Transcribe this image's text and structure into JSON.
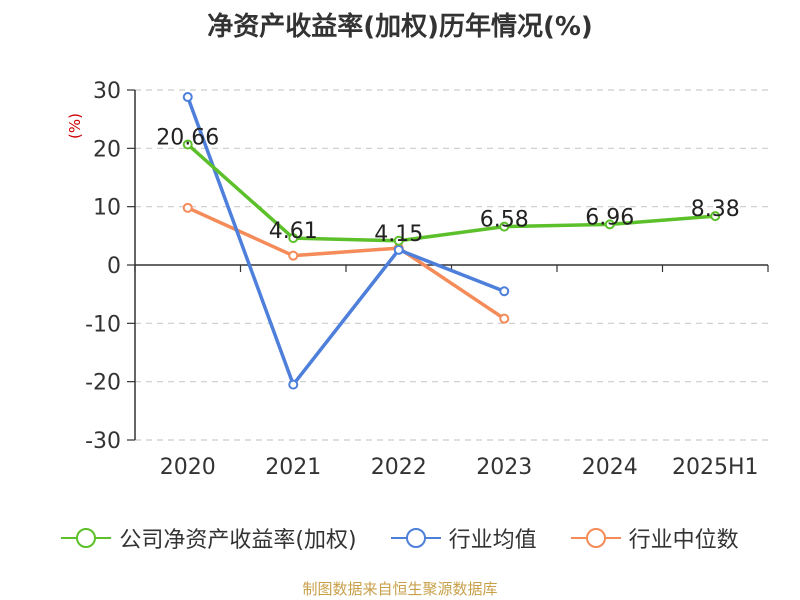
{
  "chart_data": {
    "type": "line",
    "title": "净资产收益率(加权)历年情况(%)",
    "ylabel": "(%)",
    "categories": [
      "2020",
      "2021",
      "2022",
      "2023",
      "2024",
      "2025H1"
    ],
    "ylim": [
      -30,
      30
    ],
    "yticks": [
      "30",
      "20",
      "10",
      "0",
      "-10",
      "-20",
      "-30"
    ],
    "grid": true,
    "legend_position": "bottom",
    "series": [
      {
        "name": "公司净资产收益率(加权)",
        "color": "#5cc02a",
        "values": [
          20.66,
          4.61,
          4.15,
          6.58,
          6.96,
          8.38
        ],
        "labels": [
          "20.66",
          "4.61",
          "4.15",
          "6.58",
          "6.96",
          "8.38"
        ]
      },
      {
        "name": "行业均值",
        "color": "#4d7fdb",
        "values": [
          28.8,
          -20.5,
          2.6,
          -4.5,
          null,
          null
        ]
      },
      {
        "name": "行业中位数",
        "color": "#f48b58",
        "values": [
          9.8,
          1.6,
          2.9,
          -9.2,
          null,
          null
        ]
      }
    ]
  },
  "footer": {
    "source": "制图数据来自恒生聚源数据库"
  }
}
